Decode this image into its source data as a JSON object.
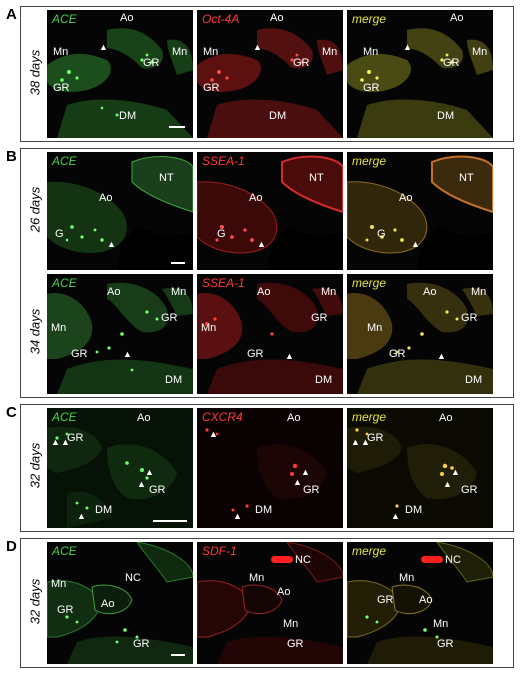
{
  "panels": [
    {
      "letter": "A",
      "rows": [
        {
          "day": "38 days",
          "tiles": [
            {
              "title": "ACE",
              "labels": [
                "Ao",
                "Mn",
                "Mn",
                "GR",
                "GR",
                "DM"
              ]
            },
            {
              "title": "Oct-4A",
              "labels": [
                "Ao",
                "Mn",
                "Mn",
                "GR",
                "GR",
                "DM"
              ]
            },
            {
              "title": "merge",
              "labels": [
                "Ao",
                "Mn",
                "Mn",
                "GR",
                "GR",
                "DM"
              ]
            }
          ]
        }
      ]
    },
    {
      "letter": "B",
      "rows": [
        {
          "day": "26 days",
          "tiles": [
            {
              "title": "ACE",
              "labels": [
                "NT",
                "Ao",
                "G"
              ]
            },
            {
              "title": "SSEA-1",
              "labels": [
                "NT",
                "Ao",
                "G"
              ]
            },
            {
              "title": "merge",
              "labels": [
                "NT",
                "Ao",
                "G"
              ]
            }
          ]
        },
        {
          "day": "34 days",
          "tiles": [
            {
              "title": "ACE",
              "labels": [
                "Ao",
                "Mn",
                "Mn",
                "GR",
                "GR",
                "DM"
              ]
            },
            {
              "title": "SSEA-1",
              "labels": [
                "Ao",
                "Mn",
                "Mn",
                "GR",
                "GR",
                "DM"
              ]
            },
            {
              "title": "merge",
              "labels": [
                "Ao",
                "Mn",
                "Mn",
                "GR",
                "GR",
                "DM"
              ]
            }
          ]
        }
      ]
    },
    {
      "letter": "C",
      "rows": [
        {
          "day": "32 days",
          "tiles": [
            {
              "title": "ACE",
              "labels": [
                "Ao",
                "GR",
                "GR",
                "DM"
              ]
            },
            {
              "title": "CXCR4",
              "labels": [
                "Ao",
                "GR",
                "DM"
              ]
            },
            {
              "title": "merge",
              "labels": [
                "Ao",
                "GR",
                "GR",
                "DM"
              ]
            }
          ]
        }
      ]
    },
    {
      "letter": "D",
      "rows": [
        {
          "day": "32 days",
          "tiles": [
            {
              "title": "ACE",
              "labels": [
                "Mn",
                "NC",
                "GR",
                "Ao",
                "GR"
              ]
            },
            {
              "title": "SDF-1",
              "labels": [
                "NC",
                "Mn",
                "Ao",
                "Mn",
                "GR"
              ]
            },
            {
              "title": "merge",
              "labels": [
                "NC",
                "Mn",
                "GR",
                "Ao",
                "Mn",
                "GR"
              ]
            }
          ]
        }
      ]
    }
  ],
  "colors": {
    "green": "#4bd14b",
    "red": "#ff3a3a",
    "yellow": "#e5e542",
    "tile_bg": "#050505"
  }
}
